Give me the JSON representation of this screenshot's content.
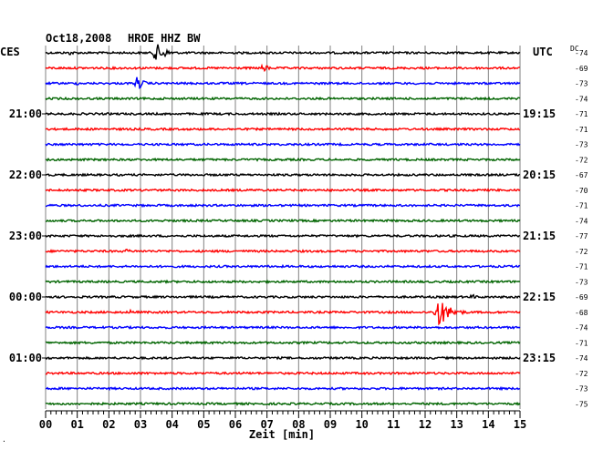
{
  "header": {
    "date": "Oct18,2008",
    "station": "HROE HHZ BW",
    "left_tz": "CES",
    "right_tz": "UTC",
    "dc_label": "DC"
  },
  "footer": {
    "axis_label": "Zeit [min]",
    "corner_mark": "."
  },
  "colors": {
    "trace_cycle": [
      "#000000",
      "#ff0000",
      "#0000ff",
      "#006400"
    ],
    "grid": "#808080"
  },
  "chart_data": {
    "type": "helicorder",
    "x_ticks": [
      "00",
      "01",
      "02",
      "03",
      "04",
      "05",
      "06",
      "07",
      "08",
      "09",
      "10",
      "11",
      "12",
      "13",
      "14",
      "15"
    ],
    "xlim": [
      0,
      15
    ],
    "left_hour_labels": [
      {
        "row": 4,
        "text": "21:00"
      },
      {
        "row": 8,
        "text": "22:00"
      },
      {
        "row": 12,
        "text": "23:00"
      },
      {
        "row": 16,
        "text": "00:00"
      },
      {
        "row": 20,
        "text": "01:00"
      }
    ],
    "right_hour_labels": [
      {
        "row": 4,
        "text": "19:15"
      },
      {
        "row": 8,
        "text": "20:15"
      },
      {
        "row": 12,
        "text": "21:15"
      },
      {
        "row": 16,
        "text": "22:15"
      },
      {
        "row": 20,
        "text": "23:15"
      }
    ],
    "dc_values": [
      "-74",
      "-69",
      "-73",
      "-74",
      "-71",
      "-71",
      "-73",
      "-72",
      "-67",
      "-70",
      "-71",
      "-74",
      "-77",
      "-72",
      "-71",
      "-73",
      "-69",
      "-68",
      "-74",
      "-71",
      "-74",
      "-72",
      "-73",
      "-75"
    ],
    "events": [
      {
        "row": 0,
        "minute": 0.8,
        "amp": 3,
        "dur": 0.35
      },
      {
        "row": 0,
        "minute": 3.5,
        "amp": 11,
        "dur": 0.9
      },
      {
        "row": 1,
        "minute": 6.9,
        "amp": 5,
        "dur": 0.5
      },
      {
        "row": 2,
        "minute": 2.9,
        "amp": 8,
        "dur": 0.6
      },
      {
        "row": 2,
        "minute": 1.0,
        "amp": 2,
        "dur": 0.4
      },
      {
        "row": 3,
        "minute": 3.8,
        "amp": 2,
        "dur": 0.3
      },
      {
        "row": 13,
        "minute": 2.6,
        "amp": 3,
        "dur": 0.3
      },
      {
        "row": 16,
        "minute": 13.5,
        "amp": 3,
        "dur": 0.5
      },
      {
        "row": 17,
        "minute": 2.7,
        "amp": 3,
        "dur": 0.3
      },
      {
        "row": 17,
        "minute": 12.4,
        "amp": 17,
        "dur": 1.1
      }
    ]
  }
}
